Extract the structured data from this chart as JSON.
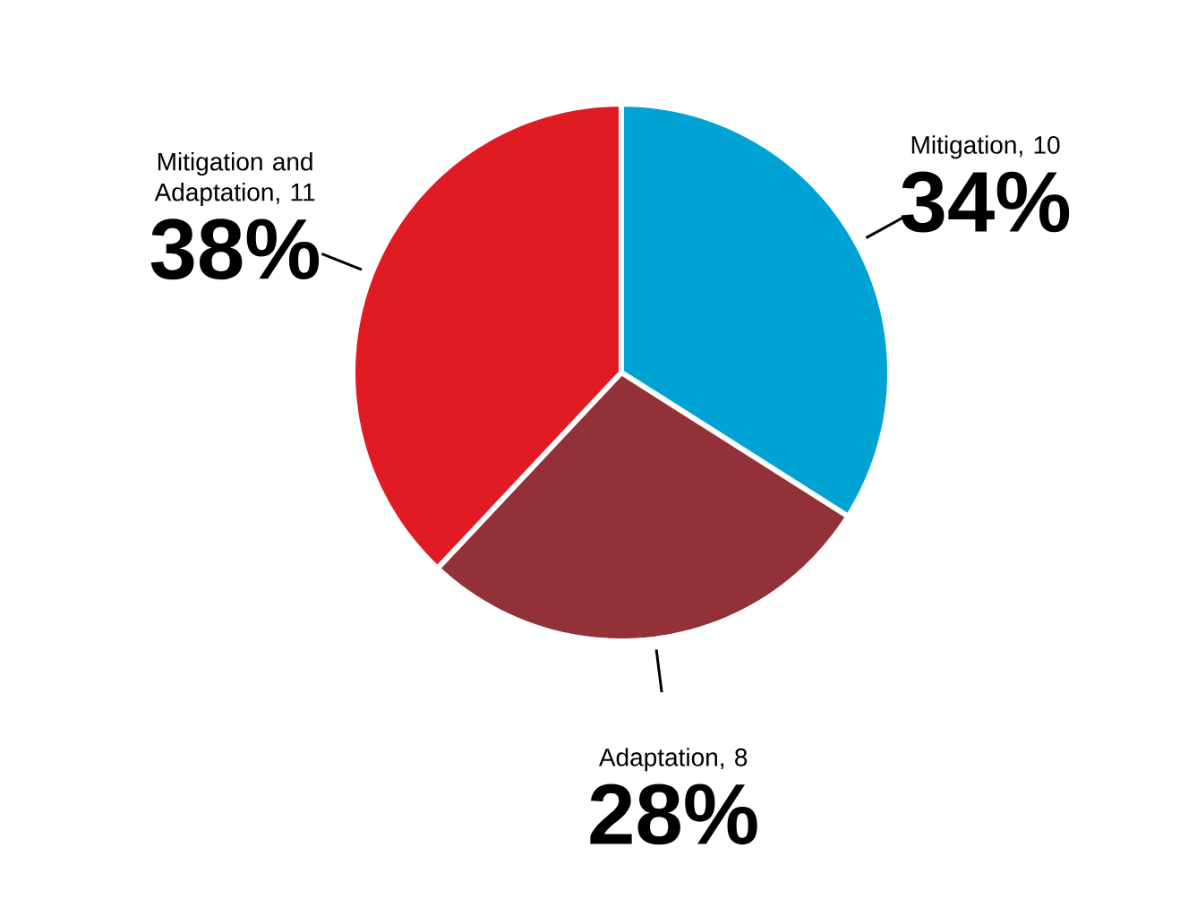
{
  "chart_data": {
    "type": "pie",
    "categories": [
      "Mitigation, 10",
      "Adaptation, 8",
      "Mitigation and Adaptation, 11"
    ],
    "values": [
      34,
      28,
      38
    ],
    "colors": [
      "#00a3d4",
      "#923137",
      "#e01b24"
    ],
    "value_labels": [
      "34%",
      "28%",
      "38%"
    ]
  }
}
